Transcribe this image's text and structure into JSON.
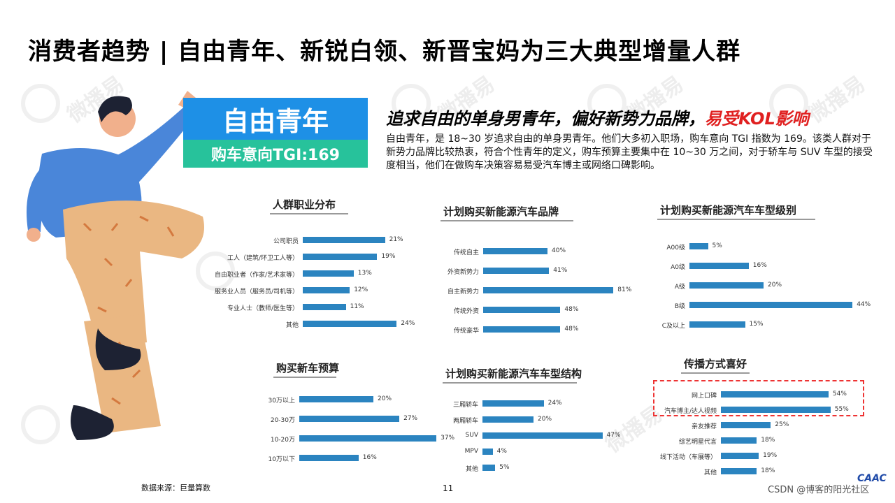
{
  "page_title": "消费者趋势 | 自由青年、新锐白领、新晋宝妈为三大典型增量人群",
  "watermark_text": "微播易",
  "badge": {
    "name": "自由青年",
    "tgi": "购车意向TGI:169"
  },
  "headline": {
    "part1": "追求自由的单身男青年，偏好新势力品牌，",
    "part2": "易受KOL影响"
  },
  "description": "自由青年，是 18~30 岁追求自由的单身男青年。他们大多初入职场，购车意向 TGI 指数为 169。该类人群对于新势力品牌比较热衷，符合个性青年的定义，购车预算主要集中在 10~30 万之间，对于轿车与 SUV 车型的接受度相当，他们在做购车决策容易易受汽车博主或网络口碑影响。",
  "colors": {
    "bar": "#2b84c0",
    "badge_blue": "#1e90e6",
    "badge_green": "#27c29b",
    "highlight_red": "#e02020"
  },
  "chart_data": [
    {
      "type": "bar",
      "title": "人群职业分布",
      "categories": [
        "公司职员",
        "工人（建筑/环卫工人等）",
        "自由职业者（作家/艺术家等）",
        "服务业人员（服务员/司机等）",
        "专业人士（教师/医生等）",
        "其他"
      ],
      "values": [
        21,
        19,
        13,
        12,
        11,
        24
      ],
      "labels": [
        "21%",
        "19%",
        "13%",
        "12%",
        "11%",
        "24%"
      ],
      "orientation": "horizontal",
      "unit": "%"
    },
    {
      "type": "bar",
      "title": "计划购买新能源汽车品牌",
      "categories": [
        "传统自主",
        "外资新势力",
        "自主新势力",
        "传统外资",
        "传统豪华"
      ],
      "values": [
        40,
        41,
        81,
        48,
        48
      ],
      "labels": [
        "40%",
        "41%",
        "81%",
        "48%",
        "48%"
      ],
      "orientation": "horizontal",
      "unit": "%"
    },
    {
      "type": "bar",
      "title": "计划购买新能源汽车车型级别",
      "categories": [
        "A00级",
        "A0级",
        "A级",
        "B级",
        "C及以上"
      ],
      "values": [
        5,
        16,
        20,
        44,
        15
      ],
      "labels": [
        "5%",
        "16%",
        "20%",
        "44%",
        "15%"
      ],
      "orientation": "horizontal",
      "unit": "%"
    },
    {
      "type": "bar",
      "title": "购买新车预算",
      "categories": [
        "30万以上",
        "20-30万",
        "10-20万",
        "10万以下"
      ],
      "values": [
        20,
        27,
        37,
        16
      ],
      "labels": [
        "20%",
        "27%",
        "37%",
        "16%"
      ],
      "orientation": "horizontal",
      "unit": "%"
    },
    {
      "type": "bar",
      "title": "计划购买新能源汽车车型结构",
      "categories": [
        "三厢轿车",
        "两厢轿车",
        "SUV",
        "MPV",
        "其他"
      ],
      "values": [
        24,
        20,
        47,
        4,
        5
      ],
      "labels": [
        "24%",
        "20%",
        "47%",
        "4%",
        "5%"
      ],
      "orientation": "horizontal",
      "unit": "%"
    },
    {
      "type": "bar",
      "title": "传播方式喜好",
      "categories": [
        "网上口碑",
        "汽车博主/达人视频",
        "亲友推荐",
        "综艺明星代言",
        "线下活动（车展等）",
        "其他"
      ],
      "values": [
        54,
        55,
        25,
        18,
        19,
        18
      ],
      "labels": [
        "54%",
        "55%",
        "25%",
        "18%",
        "19%",
        "18%"
      ],
      "orientation": "horizontal",
      "unit": "%"
    }
  ],
  "footer": {
    "source": "数据来源：巨量算数",
    "page_number": "11",
    "credit": "CSDN @博客的阳光社区",
    "logo": "CAAC"
  }
}
